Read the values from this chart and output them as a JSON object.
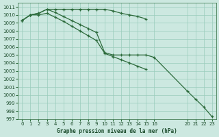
{
  "title": "Graphe pression niveau de la mer (hPa)",
  "background_color": "#cce8e0",
  "grid_color": "#99ccbb",
  "line_color": "#2d6b3c",
  "xlim": [
    -0.5,
    23.5
  ],
  "ylim": [
    997,
    1011.5
  ],
  "xticks": [
    0,
    1,
    2,
    3,
    4,
    5,
    6,
    7,
    8,
    9,
    10,
    11,
    12,
    13,
    14,
    15,
    16,
    20,
    21,
    22,
    23
  ],
  "yticks": [
    997,
    998,
    999,
    1000,
    1001,
    1002,
    1003,
    1004,
    1005,
    1006,
    1007,
    1008,
    1009,
    1010,
    1011
  ],
  "series": [
    {
      "x": [
        0,
        1,
        2,
        3,
        4,
        5,
        6,
        7,
        8,
        9,
        10,
        11,
        12,
        13,
        14,
        15,
        16,
        20,
        21,
        22,
        23
      ],
      "y": [
        1009.3,
        1010.0,
        1010.2,
        1010.7,
        1010.7,
        1010.7,
        1010.7,
        1010.7,
        1010.7,
        1010.7,
        1010.7,
        1010.5,
        1010.2,
        1010.0,
        1009.8,
        1009.5,
        null,
        null,
        null,
        null,
        null
      ]
    },
    {
      "x": [
        0,
        1,
        2,
        3,
        4,
        5,
        6,
        7,
        8,
        9,
        10,
        11,
        12,
        13,
        14,
        15,
        16,
        20,
        21,
        22,
        23
      ],
      "y": [
        1009.3,
        1010.0,
        1010.2,
        1010.7,
        1010.3,
        1009.8,
        1009.3,
        1008.8,
        1008.3,
        1007.8,
        1005.3,
        1005.0,
        1005.0,
        1005.0,
        1005.0,
        1005.0,
        1004.7,
        1000.5,
        999.5,
        998.5,
        997.3
      ]
    },
    {
      "x": [
        0,
        1,
        2,
        3,
        4,
        5,
        6,
        7,
        8,
        9,
        10,
        11,
        12,
        13,
        14,
        15,
        16,
        20,
        21,
        22,
        23
      ],
      "y": [
        1009.3,
        1010.0,
        1010.0,
        1010.2,
        1009.7,
        1009.2,
        1008.6,
        1008.0,
        1007.4,
        1006.8,
        1005.2,
        1004.8,
        1004.4,
        1004.0,
        1003.6,
        1003.2,
        null,
        null,
        null,
        null,
        null
      ]
    }
  ]
}
